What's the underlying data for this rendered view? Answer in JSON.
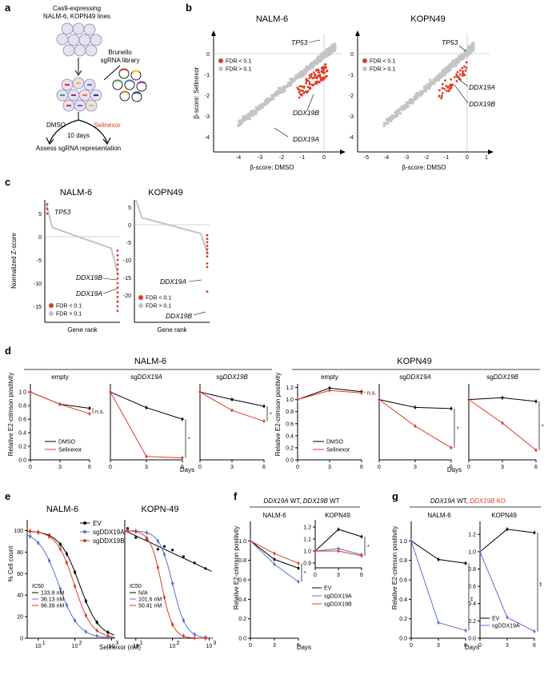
{
  "colors": {
    "hit": "#e03b24",
    "nonhit": "#c4c4c4",
    "dmso": "#000000",
    "selinexor": "#e03b24",
    "sgA": "#5a6fd6",
    "sgB": "#e03b24",
    "ev": "#000000"
  },
  "panel_a": {
    "label": "a",
    "lines_text": [
      "Cas9-expressing",
      "NALM-6, KOPN49 lines"
    ],
    "library_text": [
      "Brunello",
      "sgRNA library"
    ],
    "dmso": "DMSO",
    "selinexor": "Selinexor",
    "days": "10 days",
    "assess": "Assess sgRNA representation"
  },
  "panel_b": {
    "label": "b",
    "legend": [
      "FDR < 0.1",
      "FDR > 0.1"
    ],
    "xlabel": "β-score: DMSO",
    "ylabel": "β-score: Selinexor",
    "plots": [
      {
        "title": "NALM-6",
        "xticks": [
          "-4",
          "-3",
          "-2",
          "-1",
          "0"
        ],
        "yticks": [
          "0",
          "-1",
          "-2",
          "-3",
          "-4"
        ],
        "genes": [
          "TP53",
          "DDX19B",
          "DDX19A"
        ]
      },
      {
        "title": "KOPN49",
        "xticks": [
          "-5",
          "-4",
          "-3",
          "-2",
          "-1",
          "0",
          "1"
        ],
        "yticks": [
          "0",
          "-1",
          "-2",
          "-3",
          "-4"
        ],
        "genes": [
          "TP53",
          "DDX19A",
          "DDX19B"
        ]
      }
    ]
  },
  "panel_c": {
    "label": "c",
    "ylabel": "Normalized Z-score",
    "xlabel": "Gene rank",
    "legend": [
      "FDR < 0.1",
      "FDR > 0.1"
    ],
    "plots": [
      {
        "title": "NALM-6",
        "yticks": [
          "5",
          "0",
          "-5",
          "-10",
          "-15"
        ],
        "genes": [
          "TP53",
          "DDX19B",
          "DDX19A"
        ]
      },
      {
        "title": "KOPN49",
        "yticks": [
          "5",
          "0",
          "-5",
          "-10",
          "-15",
          "-20"
        ],
        "genes": [
          "DDX19A",
          "DDX19B"
        ]
      }
    ]
  },
  "panel_d": {
    "label": "d",
    "ylabel": "Relative E2-crimson positivity",
    "xlabel": "Days",
    "legend": [
      "DMSO",
      "Selinexor"
    ],
    "groups": [
      {
        "title": "NALM-6",
        "subs": [
          {
            "pre": "empty",
            "gene": "",
            "dmso": [
              1.0,
              0.82,
              0.76
            ],
            "sel": [
              1.0,
              0.82,
              0.68
            ],
            "sig": "n.s."
          },
          {
            "pre": "sg",
            "gene": "DDX19A",
            "dmso": [
              1.0,
              0.77,
              0.6
            ],
            "sel": [
              1.0,
              0.05,
              0.03
            ],
            "sig": "*"
          },
          {
            "pre": "sg",
            "gene": "DDX19B",
            "dmso": [
              1.0,
              0.89,
              0.79
            ],
            "sel": [
              1.0,
              0.73,
              0.57
            ],
            "sig": "*"
          }
        ]
      },
      {
        "title": "KOPN49",
        "subs": [
          {
            "pre": "empty",
            "gene": "",
            "dmso": [
              1.0,
              1.19,
              1.13
            ],
            "sel": [
              1.0,
              1.15,
              1.11
            ],
            "sig": "n.s."
          },
          {
            "pre": "sg",
            "gene": "DDX19A",
            "dmso": [
              1.0,
              0.87,
              0.85
            ],
            "sel": [
              1.0,
              0.56,
              0.2
            ],
            "sig": "*"
          },
          {
            "pre": "sg",
            "gene": "DDX19B",
            "dmso": [
              1.0,
              1.03,
              0.97
            ],
            "sel": [
              1.0,
              0.61,
              0.16
            ],
            "sig": "*"
          }
        ]
      }
    ]
  },
  "panel_e": {
    "label": "e",
    "ylabel": "% Cell count",
    "xlabel": "Selinexor (nM)",
    "legend": [
      "EV",
      "sgDDX19A",
      "sgDDX19B"
    ],
    "ic50_title": "IC50",
    "plots": [
      {
        "title": "NALM-6",
        "ic50": [
          "133.8 nM",
          "36.13 nM",
          "96.39 nM"
        ]
      },
      {
        "title": "KOPN-49",
        "ic50": [
          "N/A",
          "101.6 nM",
          "50.41 nM"
        ]
      }
    ]
  },
  "panel_f": {
    "label": "f",
    "header_a": "DDX19A",
    "wt1": " WT, ",
    "header_b": "DDX19B",
    "wt2": " WT",
    "ylabel": "Relative E2-crimson positivity",
    "xlabel": "Days",
    "legend": [
      "EV",
      "sgDDX19A",
      "sgDDX19B"
    ],
    "plots": [
      {
        "title": "NALM-6",
        "ev": [
          1.0,
          0.81,
          0.72
        ],
        "a": [
          1.0,
          0.76,
          0.58
        ],
        "b": [
          1.0,
          0.87,
          0.77
        ],
        "sig": "*"
      },
      {
        "title": "KOPN49",
        "ev": [
          1.0,
          1.18,
          1.12
        ],
        "a": [
          1.0,
          1.02,
          0.97
        ],
        "b": [
          1.0,
          1.0,
          0.96
        ],
        "sig": "*"
      }
    ]
  },
  "panel_g": {
    "label": "g",
    "header_a": "DDX19A",
    "wt1": " WT, ",
    "header_b": "DDX19B",
    "ko": " KO",
    "ylabel": "Relative E2-crimson positivity",
    "xlabel": "Days",
    "legend": [
      "EV",
      "sgDDX19A"
    ],
    "plots": [
      {
        "title": "NALM-6",
        "ev": [
          1.0,
          0.81,
          0.77
        ],
        "a": [
          1.0,
          0.16,
          0.08
        ],
        "sig": "**"
      },
      {
        "title": "KOPN49",
        "ev": [
          1.0,
          1.26,
          1.22
        ],
        "a": [
          1.0,
          0.24,
          0.08
        ],
        "sig": "**"
      }
    ]
  }
}
